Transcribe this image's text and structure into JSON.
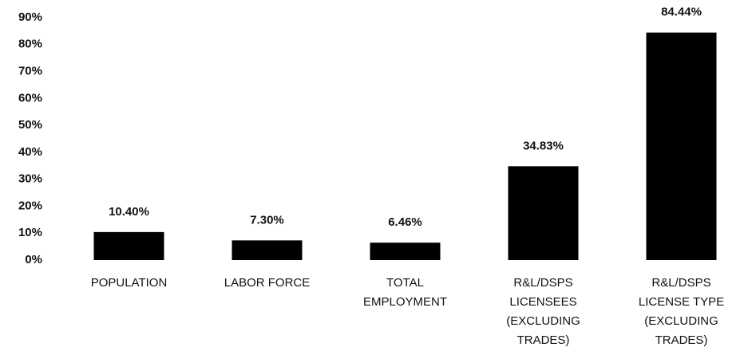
{
  "chart_data": {
    "type": "bar",
    "categories": [
      "POPULATION",
      "LABOR FORCE",
      "TOTAL EMPLOYMENT",
      "R&L/DSPS LICENSEES (EXCLUDING TRADES)",
      "R&L/DSPS LICENSE TYPE (EXCLUDING TRADES)"
    ],
    "values": [
      10.4,
      7.3,
      6.46,
      34.83,
      84.44
    ],
    "value_labels": [
      "10.40%",
      "7.30%",
      "6.46%",
      "34.83%",
      "84.44%"
    ],
    "color": "#000000",
    "ylim": [
      0,
      90
    ],
    "yticks": [
      {
        "value": 0,
        "label": "0%"
      },
      {
        "value": 10,
        "label": "10%"
      },
      {
        "value": 20,
        "label": "20%"
      },
      {
        "value": 30,
        "label": "30%"
      },
      {
        "value": 40,
        "label": "40%"
      },
      {
        "value": 50,
        "label": "50%"
      },
      {
        "value": 60,
        "label": "60%"
      },
      {
        "value": 70,
        "label": "70%"
      },
      {
        "value": 80,
        "label": "80%"
      },
      {
        "value": 90,
        "label": "90%"
      }
    ],
    "grid": false
  }
}
